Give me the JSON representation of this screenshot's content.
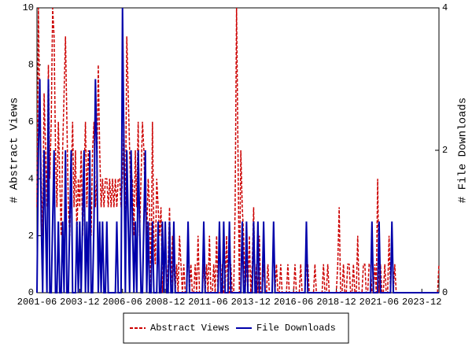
{
  "chart_data": {
    "type": "line",
    "y_label": "# Abstract Views",
    "y2_label": "# File Downloads",
    "x": [
      "2001-06",
      "2001-07",
      "2001-08",
      "2001-09",
      "2001-10",
      "2001-11",
      "2001-12",
      "2002-01",
      "2002-02",
      "2002-03",
      "2002-04",
      "2002-05",
      "2002-06",
      "2002-07",
      "2002-08",
      "2002-09",
      "2002-10",
      "2002-11",
      "2002-12",
      "2003-01",
      "2003-02",
      "2003-03",
      "2003-04",
      "2003-05",
      "2003-06",
      "2003-07",
      "2003-08",
      "2003-09",
      "2003-10",
      "2003-11",
      "2003-12",
      "2004-01",
      "2004-02",
      "2004-03",
      "2004-04",
      "2004-05",
      "2004-06",
      "2004-07",
      "2004-08",
      "2004-09",
      "2004-10",
      "2004-11",
      "2004-12",
      "2005-01",
      "2005-02",
      "2005-03",
      "2005-04",
      "2005-05",
      "2005-06",
      "2005-07",
      "2005-08",
      "2005-09",
      "2005-10",
      "2005-11",
      "2005-12",
      "2006-01",
      "2006-02",
      "2006-03",
      "2006-04",
      "2006-05",
      "2006-06",
      "2006-07",
      "2006-08",
      "2006-09",
      "2006-10",
      "2006-11",
      "2006-12",
      "2007-01",
      "2007-02",
      "2007-03",
      "2007-04",
      "2007-05",
      "2007-06",
      "2007-07",
      "2007-08",
      "2007-09",
      "2007-10",
      "2007-11",
      "2007-12",
      "2008-01",
      "2008-02",
      "2008-03",
      "2008-04",
      "2008-05",
      "2008-06",
      "2008-07",
      "2008-08",
      "2008-09",
      "2008-10",
      "2008-11",
      "2008-12",
      "2009-01",
      "2009-02",
      "2009-03",
      "2009-04",
      "2009-05",
      "2009-06",
      "2009-07",
      "2009-08",
      "2009-09",
      "2009-10",
      "2009-11",
      "2009-12",
      "2010-01",
      "2010-02",
      "2010-03",
      "2010-04",
      "2010-05",
      "2010-06",
      "2010-07",
      "2010-08",
      "2010-09",
      "2010-10",
      "2010-11",
      "2010-12",
      "2011-01",
      "2011-02",
      "2011-03",
      "2011-04",
      "2011-05",
      "2011-06",
      "2011-07",
      "2011-08",
      "2011-09",
      "2011-10",
      "2011-11",
      "2011-12",
      "2012-01",
      "2012-02",
      "2012-03",
      "2012-04",
      "2012-05",
      "2012-06",
      "2012-07",
      "2012-08",
      "2012-09",
      "2012-10",
      "2012-11",
      "2012-12",
      "2013-01",
      "2013-02",
      "2013-03",
      "2013-04",
      "2013-05",
      "2013-06",
      "2013-07",
      "2013-08",
      "2013-09",
      "2013-10",
      "2013-11",
      "2013-12",
      "2014-01",
      "2014-02",
      "2014-03",
      "2014-04",
      "2014-05",
      "2014-06",
      "2014-07",
      "2014-08",
      "2014-09",
      "2014-10",
      "2014-11",
      "2014-12",
      "2015-01",
      "2015-02",
      "2015-03",
      "2015-04",
      "2015-05",
      "2015-06",
      "2015-07",
      "2015-08",
      "2015-09",
      "2015-10",
      "2015-11",
      "2015-12",
      "2016-01",
      "2016-02",
      "2016-03",
      "2016-04",
      "2016-05",
      "2016-06",
      "2016-07",
      "2016-08",
      "2016-09",
      "2016-10",
      "2016-11",
      "2016-12",
      "2017-01",
      "2017-02",
      "2017-03",
      "2017-04",
      "2017-05",
      "2017-06",
      "2017-07",
      "2017-08",
      "2017-09",
      "2017-10",
      "2017-11",
      "2017-12",
      "2018-01",
      "2018-02",
      "2018-03",
      "2018-04",
      "2018-05",
      "2018-06",
      "2018-07",
      "2018-08",
      "2018-09",
      "2018-10",
      "2018-11",
      "2018-12",
      "2019-01",
      "2019-02",
      "2019-03",
      "2019-04",
      "2019-05",
      "2019-06",
      "2019-07",
      "2019-08",
      "2019-09",
      "2019-10",
      "2019-11",
      "2019-12",
      "2020-01",
      "2020-02",
      "2020-03",
      "2020-04",
      "2020-05",
      "2020-06",
      "2020-07",
      "2020-08",
      "2020-09",
      "2020-10",
      "2020-11",
      "2020-12",
      "2021-01",
      "2021-02",
      "2021-03",
      "2021-04",
      "2021-05",
      "2021-06",
      "2021-07",
      "2021-08",
      "2021-09",
      "2021-10",
      "2021-11",
      "2021-12",
      "2022-01",
      "2022-02",
      "2022-03",
      "2022-04",
      "2022-05",
      "2022-06",
      "2022-07",
      "2022-08",
      "2022-09",
      "2022-10",
      "2022-11",
      "2022-12",
      "2023-01",
      "2023-02",
      "2023-03",
      "2023-04",
      "2023-05",
      "2023-06",
      "2023-07",
      "2023-08",
      "2023-09",
      "2023-10",
      "2023-11",
      "2023-12",
      "2024-01",
      "2024-02",
      "2024-03",
      "2024-04",
      "2024-05",
      "2024-06",
      "2024-07",
      "2024-08",
      "2024-09",
      "2024-10",
      "2024-11",
      "2024-12"
    ],
    "series": [
      {
        "name": "Abstract Views",
        "color": "#cc0000",
        "dash": true,
        "values": [
          3,
          10,
          6,
          4,
          2,
          7,
          5,
          3,
          8,
          4,
          6,
          10,
          9,
          5,
          3,
          6,
          4,
          2,
          5,
          7,
          9,
          6,
          3,
          2,
          4,
          6,
          3,
          5,
          2,
          4,
          3,
          5,
          2,
          4,
          6,
          3,
          5,
          4,
          2,
          5,
          6,
          3,
          4,
          8,
          5,
          3,
          4,
          3,
          4,
          4,
          3,
          4,
          3,
          4,
          3,
          4,
          3,
          4,
          4,
          3,
          4,
          6,
          2,
          9,
          7,
          5,
          3,
          4,
          2,
          5,
          3,
          6,
          2,
          4,
          6,
          5,
          3,
          2,
          4,
          3,
          0,
          6,
          2,
          1,
          4,
          3,
          2,
          3,
          0,
          1,
          2,
          0,
          1,
          3,
          0,
          2,
          1,
          0,
          1,
          0,
          2,
          1,
          0,
          1,
          0,
          0,
          2,
          0,
          1,
          0,
          0,
          1,
          0,
          2,
          0,
          0,
          0,
          1,
          0,
          1,
          0,
          2,
          0,
          0,
          1,
          0,
          2,
          0,
          0,
          0,
          1,
          0,
          0,
          2,
          0,
          0,
          1,
          0,
          0,
          3,
          10,
          5,
          0,
          5,
          3,
          2,
          0,
          1,
          0,
          2,
          0,
          1,
          3,
          0,
          1,
          0,
          2,
          0,
          0,
          1,
          0,
          0,
          1,
          0,
          0,
          0,
          2,
          0,
          1,
          0,
          0,
          1,
          0,
          0,
          0,
          0,
          1,
          0,
          0,
          0,
          0,
          1,
          0,
          0,
          0,
          1,
          0,
          0,
          0,
          1,
          1,
          0,
          0,
          0,
          0,
          1,
          0,
          0,
          0,
          0,
          0,
          1,
          0,
          0,
          1,
          0,
          0,
          0,
          0,
          0,
          0,
          1,
          3,
          0,
          0,
          1,
          0,
          0,
          1,
          1,
          0,
          0,
          1,
          0,
          0,
          2,
          0,
          0,
          0,
          1,
          1,
          0,
          0,
          1,
          1,
          0,
          0,
          1,
          0,
          4,
          0,
          1,
          0,
          0,
          1,
          0,
          0,
          2,
          0,
          0,
          0,
          1,
          0,
          0,
          0,
          0,
          0,
          0,
          0,
          0,
          0,
          0,
          0,
          0,
          0,
          0,
          0,
          0,
          0,
          0,
          0,
          0,
          0,
          0,
          0,
          0,
          0,
          0,
          0,
          0,
          0,
          0,
          1
        ]
      },
      {
        "name": "File Downloads",
        "color": "#0000aa",
        "axis": "y2",
        "values": [
          0,
          2,
          3,
          1,
          0,
          2,
          1,
          0,
          3,
          0,
          0,
          1,
          2,
          0,
          0,
          1,
          0,
          0,
          1,
          0,
          2,
          0,
          0,
          1,
          2,
          0,
          0,
          0,
          1,
          0,
          1,
          0,
          1,
          2,
          0,
          1,
          0,
          2,
          0,
          0,
          1,
          3,
          2,
          0,
          1,
          0,
          1,
          0,
          0,
          1,
          0,
          0,
          0,
          0,
          0,
          0,
          1,
          0,
          0,
          0,
          4,
          2,
          0,
          2,
          1,
          0,
          2,
          1,
          0,
          1,
          0,
          2,
          1,
          0,
          0,
          1,
          2,
          0,
          1,
          0,
          0,
          1,
          0,
          0,
          0,
          1,
          0,
          0,
          1,
          0,
          1,
          0,
          0,
          1,
          0,
          0,
          1,
          0,
          0,
          0,
          0,
          0,
          0,
          0,
          0,
          0,
          1,
          0,
          0,
          0,
          0,
          0,
          0,
          0,
          0,
          0,
          0,
          1,
          0,
          0,
          0,
          0,
          0,
          0,
          0,
          0,
          0,
          0,
          1,
          0,
          0,
          1,
          0,
          0,
          0,
          1,
          0,
          0,
          0,
          0,
          0,
          0,
          0,
          0,
          1,
          0,
          0,
          1,
          0,
          0,
          0,
          0,
          1,
          0,
          0,
          1,
          0,
          0,
          0,
          1,
          0,
          0,
          0,
          0,
          0,
          0,
          1,
          0,
          0,
          0,
          0,
          0,
          0,
          0,
          0,
          0,
          0,
          0,
          0,
          0,
          0,
          0,
          0,
          0,
          0,
          0,
          0,
          0,
          0,
          1,
          0,
          0,
          0,
          0,
          0,
          0,
          0,
          0,
          0,
          0,
          0,
          0,
          0,
          0,
          0,
          0,
          0,
          0,
          0,
          0,
          0,
          0,
          0,
          0,
          0,
          0,
          0,
          0,
          0,
          0,
          0,
          0,
          0,
          0,
          0,
          0,
          0,
          0,
          0,
          0,
          0,
          0,
          0,
          0,
          0,
          1,
          0,
          0,
          0,
          0,
          1,
          0,
          0,
          0,
          0,
          0,
          0,
          0,
          0,
          1,
          0,
          0,
          0,
          0,
          0,
          0,
          0,
          0,
          0,
          0,
          0,
          0,
          0,
          0,
          0,
          0,
          0,
          0,
          0,
          0,
          0,
          0,
          0,
          0,
          0,
          0,
          0,
          0,
          0,
          0,
          0,
          0,
          0
        ]
      }
    ],
    "xlim": [
      "2001-06",
      "2024-12"
    ],
    "xticks": [
      "2001-06",
      "2003-12",
      "2006-06",
      "2008-12",
      "2011-06",
      "2013-12",
      "2016-06",
      "2018-12",
      "2021-06",
      "2023-12"
    ],
    "ylim": [
      0,
      10
    ],
    "yticks": [
      0,
      2,
      4,
      6,
      8,
      10
    ],
    "y2lim": [
      0,
      4
    ],
    "y2ticks": [
      0,
      2,
      4
    ],
    "legend": "bottom"
  }
}
